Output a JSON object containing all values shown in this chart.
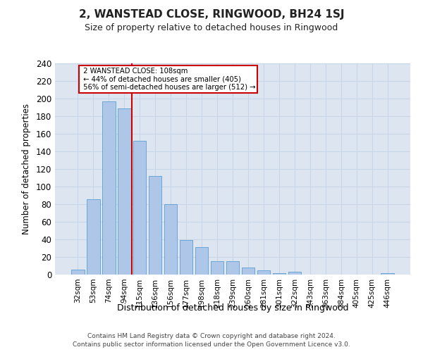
{
  "title": "2, WANSTEAD CLOSE, RINGWOOD, BH24 1SJ",
  "subtitle": "Size of property relative to detached houses in Ringwood",
  "xlabel": "Distribution of detached houses by size in Ringwood",
  "ylabel": "Number of detached properties",
  "bar_labels": [
    "32sqm",
    "53sqm",
    "74sqm",
    "94sqm",
    "115sqm",
    "136sqm",
    "156sqm",
    "177sqm",
    "198sqm",
    "218sqm",
    "239sqm",
    "260sqm",
    "281sqm",
    "301sqm",
    "322sqm",
    "343sqm",
    "363sqm",
    "384sqm",
    "405sqm",
    "425sqm",
    "446sqm"
  ],
  "bar_values": [
    6,
    86,
    197,
    189,
    152,
    112,
    80,
    39,
    31,
    15,
    15,
    8,
    5,
    2,
    3,
    0,
    0,
    0,
    0,
    0,
    2
  ],
  "bar_color": "#aec6e8",
  "bar_edge_color": "#5a9fd4",
  "property_label": "2 WANSTEAD CLOSE: 108sqm",
  "pct_smaller": 44,
  "n_smaller": 405,
  "pct_larger": 56,
  "n_larger": 512,
  "annotation_box_color": "#ffffff",
  "annotation_box_edge": "#cc0000",
  "red_line_color": "#cc0000",
  "red_line_x": 3.5,
  "ylim": [
    0,
    240
  ],
  "yticks": [
    0,
    20,
    40,
    60,
    80,
    100,
    120,
    140,
    160,
    180,
    200,
    220,
    240
  ],
  "grid_color": "#c8d4e8",
  "background_color": "#dde6f0",
  "footer_line1": "Contains HM Land Registry data © Crown copyright and database right 2024.",
  "footer_line2": "Contains public sector information licensed under the Open Government Licence v3.0."
}
